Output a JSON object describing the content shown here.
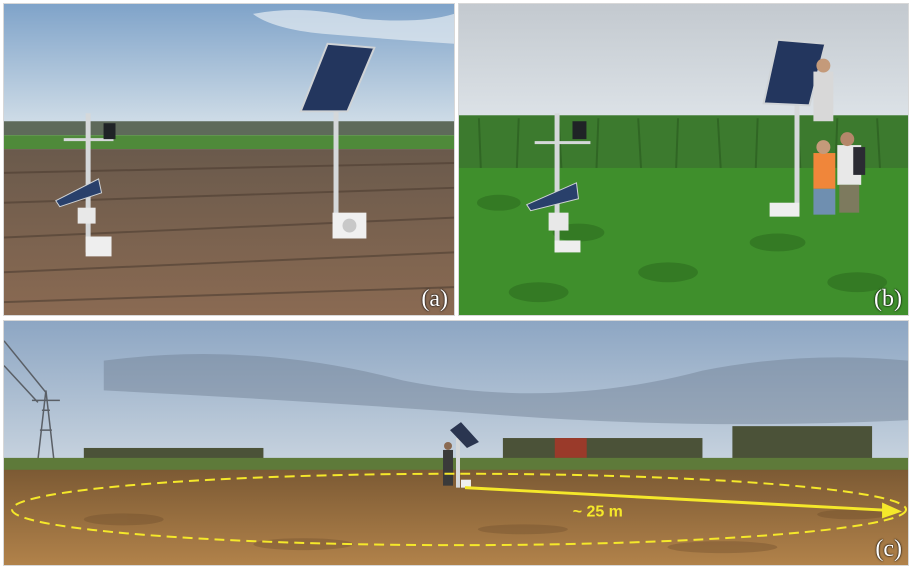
{
  "panels": [
    {
      "id": "a",
      "label": "(a)"
    },
    {
      "id": "b",
      "label": "(b)"
    },
    {
      "id": "c",
      "label": "(c)"
    }
  ],
  "annotation": {
    "distance_label": "~ 25 m",
    "color": "#f5e82a"
  },
  "colors": {
    "sky_light": "#c9d9e8",
    "sky_blue": "#8fb1d3",
    "soil_brown": "#6e5744",
    "field_green": "#3d8a2a",
    "dusk_soil": "#a8773c"
  }
}
